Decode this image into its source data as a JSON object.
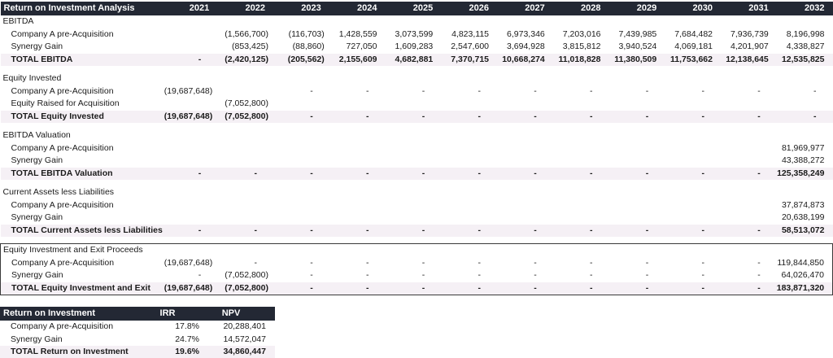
{
  "header": {
    "title": "Return on Investment Analysis",
    "years": [
      "2021",
      "2022",
      "2023",
      "2024",
      "2025",
      "2026",
      "2027",
      "2028",
      "2029",
      "2030",
      "2031",
      "2032"
    ]
  },
  "colors": {
    "header_bg": "#232834",
    "header_text": "#ffffff",
    "total_row_bg": "#f5f0f5",
    "body_text": "#1a1a1a",
    "box_border": "#3a3a3a"
  },
  "sections": [
    {
      "label": "EBITDA",
      "boxed": false,
      "rows": [
        {
          "label": "Company A pre-Acquisition",
          "total": false,
          "values": [
            "",
            "(1,566,700)",
            "(116,703)",
            "1,428,559",
            "3,073,599",
            "4,823,115",
            "6,973,346",
            "7,203,016",
            "7,439,985",
            "7,684,482",
            "7,936,739",
            "8,196,998"
          ]
        },
        {
          "label": "Synergy Gain",
          "total": false,
          "values": [
            "",
            "(853,425)",
            "(88,860)",
            "727,050",
            "1,609,283",
            "2,547,600",
            "3,694,928",
            "3,815,812",
            "3,940,524",
            "4,069,181",
            "4,201,907",
            "4,338,827"
          ]
        },
        {
          "label": "TOTAL EBITDA",
          "total": true,
          "values": [
            "-",
            "(2,420,125)",
            "(205,562)",
            "2,155,609",
            "4,682,881",
            "7,370,715",
            "10,668,274",
            "11,018,828",
            "11,380,509",
            "11,753,662",
            "12,138,645",
            "12,535,825"
          ]
        }
      ]
    },
    {
      "label": "Equity Invested",
      "boxed": false,
      "rows": [
        {
          "label": "Company A pre-Acquisition",
          "total": false,
          "values": [
            "(19,687,648)",
            "",
            "-",
            "-",
            "-",
            "-",
            "-",
            "-",
            "-",
            "-",
            "-",
            "-"
          ]
        },
        {
          "label": "Equity Raised for Acquisition",
          "total": false,
          "values": [
            "",
            "(7,052,800)",
            "",
            "",
            "",
            "",
            "",
            "",
            "",
            "",
            "",
            ""
          ]
        },
        {
          "label": "TOTAL Equity Invested",
          "total": true,
          "values": [
            "(19,687,648)",
            "(7,052,800)",
            "-",
            "-",
            "-",
            "-",
            "-",
            "-",
            "-",
            "-",
            "-",
            "-"
          ]
        }
      ]
    },
    {
      "label": "EBITDA Valuation",
      "boxed": false,
      "rows": [
        {
          "label": "Company A pre-Acquisition",
          "total": false,
          "values": [
            "",
            "",
            "",
            "",
            "",
            "",
            "",
            "",
            "",
            "",
            "",
            "81,969,977"
          ]
        },
        {
          "label": "Synergy Gain",
          "total": false,
          "values": [
            "",
            "",
            "",
            "",
            "",
            "",
            "",
            "",
            "",
            "",
            "",
            "43,388,272"
          ]
        },
        {
          "label": "TOTAL EBITDA Valuation",
          "total": true,
          "values": [
            "-",
            "-",
            "-",
            "-",
            "-",
            "-",
            "-",
            "-",
            "-",
            "-",
            "-",
            "125,358,249"
          ]
        }
      ]
    },
    {
      "label": "Current Assets less Liabilities",
      "boxed": false,
      "rows": [
        {
          "label": "Company A pre-Acquisition",
          "total": false,
          "values": [
            "",
            "",
            "",
            "",
            "",
            "",
            "",
            "",
            "",
            "",
            "",
            "37,874,873"
          ]
        },
        {
          "label": "Synergy Gain",
          "total": false,
          "values": [
            "",
            "",
            "",
            "",
            "",
            "",
            "",
            "",
            "",
            "",
            "",
            "20,638,199"
          ]
        },
        {
          "label": "TOTAL Current Assets less Liabilities",
          "total": true,
          "values": [
            "-",
            "-",
            "-",
            "-",
            "-",
            "-",
            "-",
            "-",
            "-",
            "-",
            "-",
            "58,513,072"
          ]
        }
      ]
    },
    {
      "label": "Equity Investment and Exit Proceeds",
      "boxed": true,
      "rows": [
        {
          "label": "Company A pre-Acquisition",
          "total": false,
          "values": [
            "(19,687,648)",
            "-",
            "-",
            "-",
            "-",
            "-",
            "-",
            "-",
            "-",
            "-",
            "-",
            "119,844,850"
          ]
        },
        {
          "label": "Synergy Gain",
          "total": false,
          "values": [
            "-",
            "(7,052,800)",
            "-",
            "-",
            "-",
            "-",
            "-",
            "-",
            "-",
            "-",
            "-",
            "64,026,470"
          ]
        },
        {
          "label": "TOTAL Equity Investment and Exit",
          "total": true,
          "values": [
            "(19,687,648)",
            "(7,052,800)",
            "-",
            "-",
            "-",
            "-",
            "-",
            "-",
            "-",
            "-",
            "-",
            "183,871,320"
          ]
        }
      ]
    }
  ],
  "roi_table": {
    "title": "Return on Investment",
    "columns": [
      "IRR",
      "NPV"
    ],
    "rows": [
      {
        "label": "Company A pre-Acquisition",
        "total": false,
        "irr": "17.8%",
        "npv": "20,288,401"
      },
      {
        "label": "Synergy Gain",
        "total": false,
        "irr": "24.7%",
        "npv": "14,572,047"
      },
      {
        "label": "TOTAL Return on Investment",
        "total": true,
        "irr": "19.6%",
        "npv": "34,860,447"
      }
    ]
  }
}
